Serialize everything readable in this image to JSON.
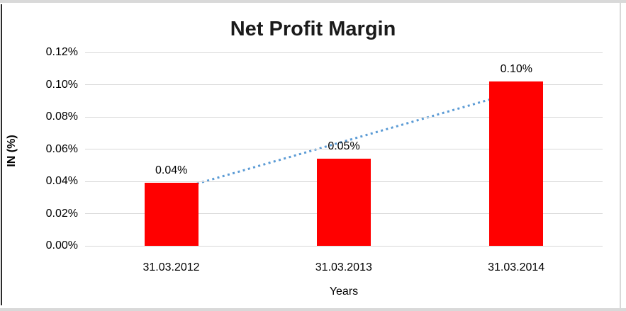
{
  "chart": {
    "title": "Net Profit Margin",
    "y_axis": {
      "label": "IN (%)",
      "ticks": [
        "0.12%",
        "0.10%",
        "0.08%",
        "0.06%",
        "0.04%",
        "0.02%",
        "0.00%"
      ]
    },
    "x_axis": {
      "label": "Years",
      "categories": [
        "31.03.2012",
        "31.03.2013",
        "31.03.2014"
      ]
    },
    "colors": {
      "bar": "#ff0000",
      "trendline": "#5b9bd5",
      "gridline": "#d9d9d9",
      "text": "#000000"
    }
  },
  "chart_data": {
    "type": "bar",
    "title": "Net Profit Margin",
    "xlabel": "Years",
    "ylabel": "IN (%)",
    "categories": [
      "31.03.2012",
      "31.03.2013",
      "31.03.2014"
    ],
    "values": [
      0.039,
      0.054,
      0.102
    ],
    "data_labels": [
      "0.04%",
      "0.05%",
      "0.10%"
    ],
    "ylim": [
      0,
      0.12
    ],
    "ytick_step": 0.02,
    "grid": true,
    "legend": false,
    "bar_color": "#ff0000",
    "trendline": {
      "style": "dotted",
      "color": "#5b9bd5",
      "from_value": 0.034,
      "to_value": 0.0955,
      "spans": "first category center to last category center"
    }
  }
}
